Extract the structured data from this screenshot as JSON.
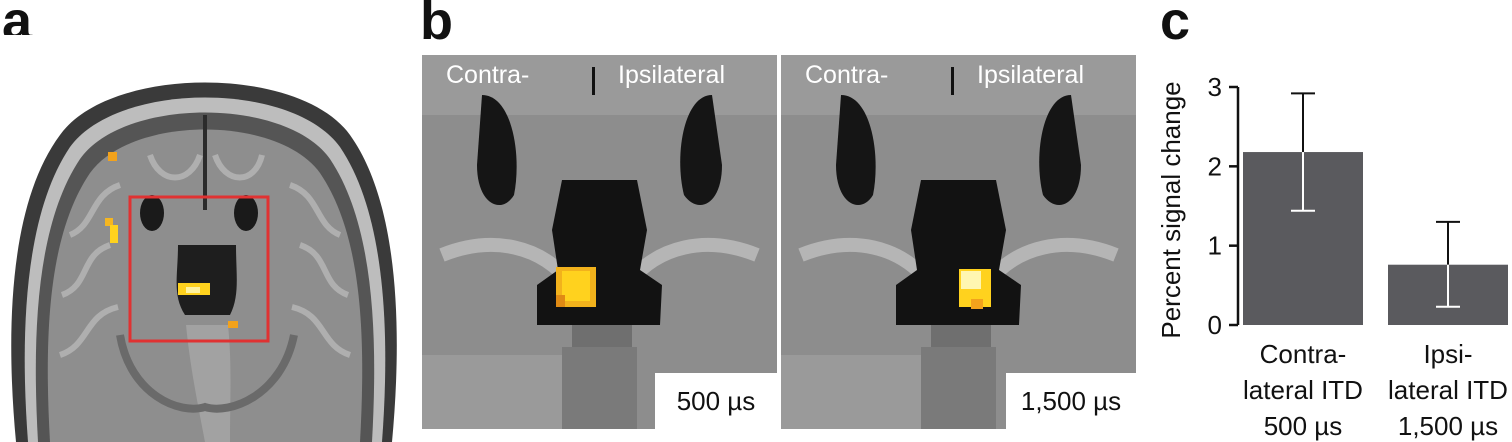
{
  "panels": {
    "a": {
      "letter": "a"
    },
    "b": {
      "letter": "b",
      "images": [
        {
          "left_label": "Contra-",
          "right_label": "Ipsilateral",
          "delay": "500 µs"
        },
        {
          "left_label": "Contra-",
          "right_label": "Ipsilateral",
          "delay": "1,500 µs"
        }
      ]
    },
    "c": {
      "letter": "c"
    }
  },
  "colors": {
    "bar": "#5a5a5e",
    "activation": "#ffd21e",
    "roi_box": "#e03232"
  },
  "chart_data": {
    "type": "bar",
    "categories": [
      [
        "Contra-",
        "lateral ITD",
        "500 µs"
      ],
      [
        "Ipsi-",
        "lateral ITD",
        "1,500 µs"
      ]
    ],
    "values": [
      2.18,
      0.76
    ],
    "error": {
      "upper": [
        2.92,
        1.3
      ],
      "lower": [
        1.44,
        0.23
      ]
    },
    "ylabel": "Percent signal change",
    "ylim": [
      0,
      3
    ],
    "yticks": [
      "0",
      "1",
      "2",
      "3"
    ],
    "grid": false
  }
}
